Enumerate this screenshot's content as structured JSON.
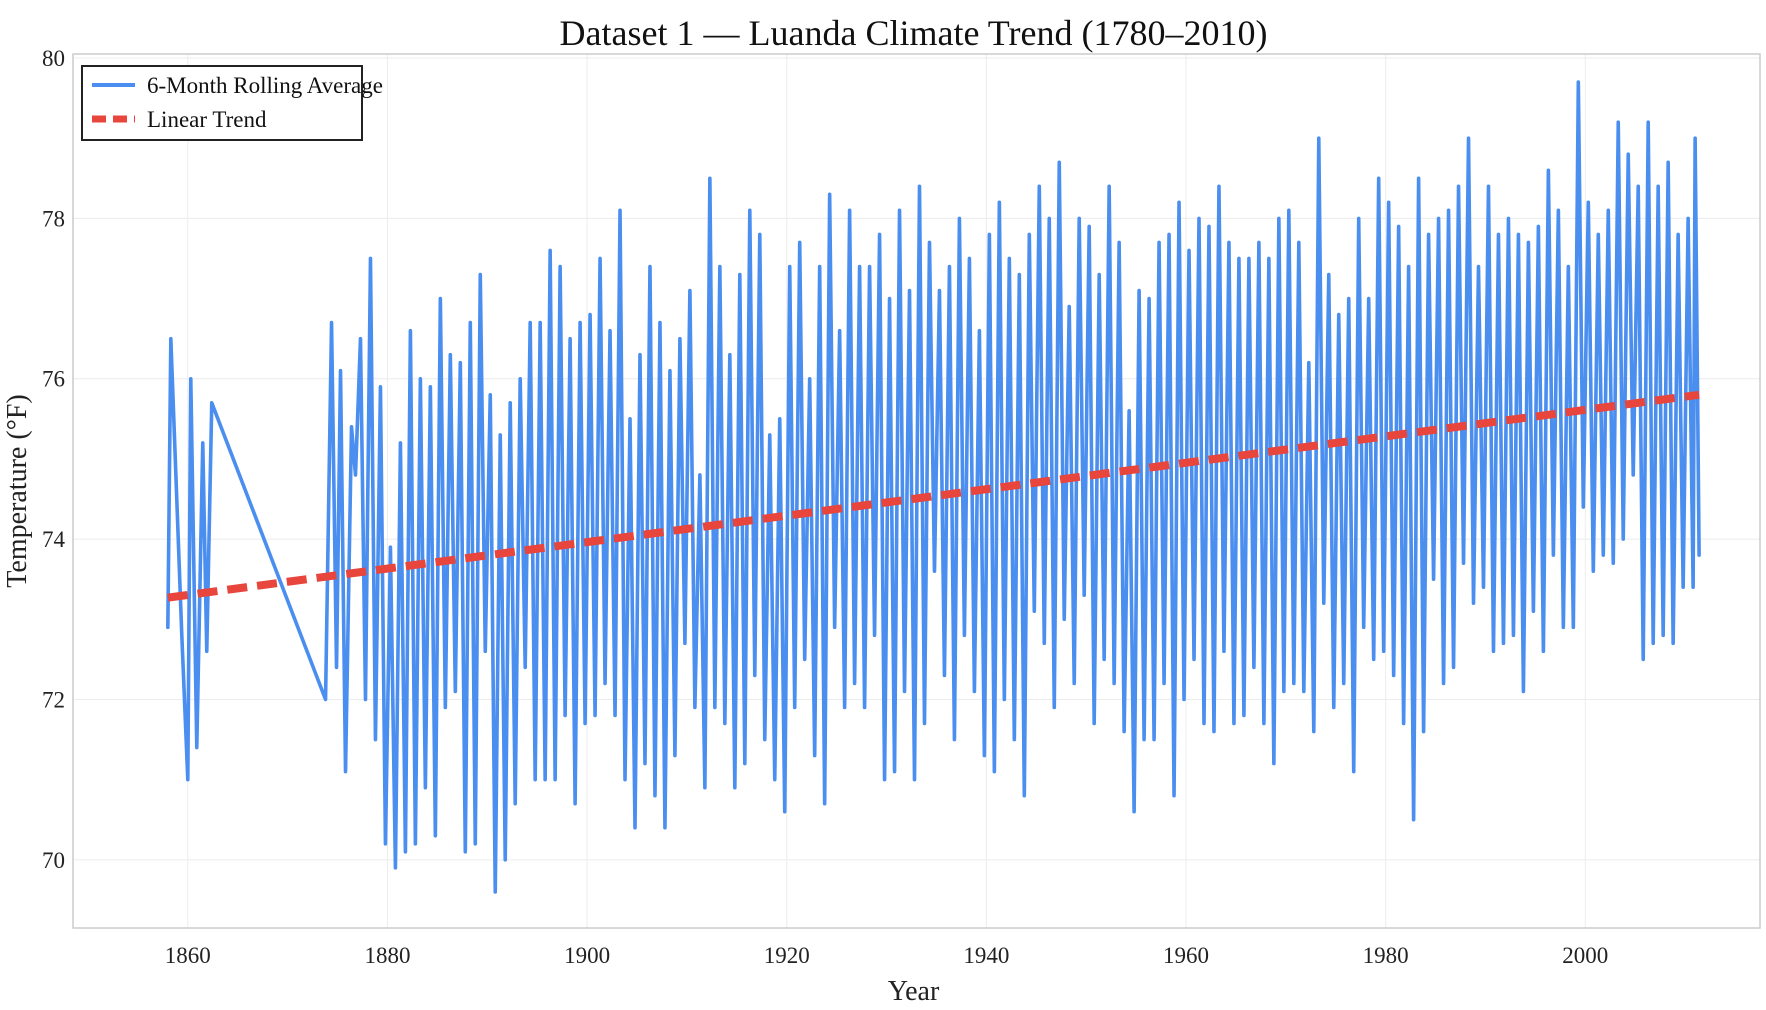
{
  "chart_data": {
    "type": "line",
    "title": "Dataset 1 — Luanda Climate Trend (1780–2010)",
    "xlabel": "Year",
    "ylabel": "Temperature (°F)",
    "xlim": [
      1848.5,
      2017.5
    ],
    "ylim": [
      69.15,
      80.05
    ],
    "xticks": [
      1860,
      1880,
      1900,
      1920,
      1940,
      1960,
      1980,
      2000
    ],
    "yticks": [
      70,
      72,
      74,
      76,
      78,
      80
    ],
    "grid": true,
    "legend_position": "top-left",
    "colors": {
      "rolling": "#4a8ef0",
      "trend": "#e8453c",
      "frame": "#cccccc",
      "grid": "#ececec"
    },
    "series": [
      {
        "name": "6-Month Rolling Average",
        "style": "solid",
        "segments_description": "gap between 1862.4 and 1874; annual oscillation thereafter",
        "start_points": [
          [
            1858.0,
            72.9
          ],
          [
            1858.3,
            76.5
          ],
          [
            1859.4,
            72.8
          ],
          [
            1860.0,
            71.0
          ],
          [
            1860.3,
            76.0
          ],
          [
            1860.9,
            71.4
          ],
          [
            1861.5,
            75.2
          ],
          [
            1861.9,
            72.6
          ],
          [
            1862.4,
            75.7
          ]
        ],
        "gap_end": [
          1873.8,
          72.0
        ],
        "peaks": [
          [
            1874.4,
            76.7
          ],
          [
            1875.3,
            76.1
          ],
          [
            1876.4,
            75.4
          ],
          [
            1877.3,
            76.5
          ],
          [
            1878.3,
            77.5
          ],
          [
            1879.3,
            75.9
          ],
          [
            1880.3,
            73.9
          ],
          [
            1881.3,
            75.2
          ],
          [
            1882.3,
            76.6
          ],
          [
            1883.3,
            76.0
          ],
          [
            1884.3,
            75.9
          ],
          [
            1885.3,
            77.0
          ],
          [
            1886.3,
            76.3
          ],
          [
            1887.3,
            76.2
          ],
          [
            1888.3,
            76.7
          ],
          [
            1889.3,
            77.3
          ],
          [
            1890.3,
            75.8
          ],
          [
            1891.3,
            75.3
          ],
          [
            1892.3,
            75.7
          ],
          [
            1893.3,
            76.0
          ],
          [
            1894.3,
            76.7
          ],
          [
            1895.3,
            76.7
          ],
          [
            1896.3,
            77.6
          ],
          [
            1897.3,
            77.4
          ],
          [
            1898.3,
            76.5
          ],
          [
            1899.3,
            76.7
          ],
          [
            1900.3,
            76.8
          ],
          [
            1901.3,
            77.5
          ],
          [
            1902.3,
            76.6
          ],
          [
            1903.3,
            78.1
          ],
          [
            1904.3,
            75.5
          ],
          [
            1905.3,
            76.3
          ],
          [
            1906.3,
            77.4
          ],
          [
            1907.3,
            76.7
          ],
          [
            1908.3,
            76.1
          ],
          [
            1909.3,
            76.5
          ],
          [
            1910.3,
            77.1
          ],
          [
            1911.3,
            74.8
          ],
          [
            1912.3,
            78.5
          ],
          [
            1913.3,
            77.4
          ],
          [
            1914.3,
            76.3
          ],
          [
            1915.3,
            77.3
          ],
          [
            1916.3,
            78.1
          ],
          [
            1917.3,
            77.8
          ],
          [
            1918.3,
            75.3
          ],
          [
            1919.3,
            75.5
          ],
          [
            1920.3,
            77.4
          ],
          [
            1921.3,
            77.7
          ],
          [
            1922.3,
            76.0
          ],
          [
            1923.3,
            77.4
          ],
          [
            1924.3,
            78.3
          ],
          [
            1925.3,
            76.6
          ],
          [
            1926.3,
            78.1
          ],
          [
            1927.3,
            77.4
          ],
          [
            1928.3,
            77.4
          ],
          [
            1929.3,
            77.8
          ],
          [
            1930.3,
            77.0
          ],
          [
            1931.3,
            78.1
          ],
          [
            1932.3,
            77.1
          ],
          [
            1933.3,
            78.4
          ],
          [
            1934.3,
            77.7
          ],
          [
            1935.3,
            77.1
          ],
          [
            1936.3,
            77.4
          ],
          [
            1937.3,
            78.0
          ],
          [
            1938.3,
            77.5
          ],
          [
            1939.3,
            76.6
          ],
          [
            1940.3,
            77.8
          ],
          [
            1941.3,
            78.2
          ],
          [
            1942.3,
            77.5
          ],
          [
            1943.3,
            77.3
          ],
          [
            1944.3,
            77.8
          ],
          [
            1945.3,
            78.4
          ],
          [
            1946.3,
            78.0
          ],
          [
            1947.3,
            78.7
          ],
          [
            1948.3,
            76.9
          ],
          [
            1949.3,
            78.0
          ],
          [
            1950.3,
            77.9
          ],
          [
            1951.3,
            77.3
          ],
          [
            1952.3,
            78.4
          ],
          [
            1953.3,
            77.7
          ],
          [
            1954.3,
            75.6
          ],
          [
            1955.3,
            77.1
          ],
          [
            1956.3,
            77.0
          ],
          [
            1957.3,
            77.7
          ],
          [
            1958.3,
            77.8
          ],
          [
            1959.3,
            78.2
          ],
          [
            1960.3,
            77.6
          ],
          [
            1961.3,
            78.0
          ],
          [
            1962.3,
            77.9
          ],
          [
            1963.3,
            78.4
          ],
          [
            1964.3,
            77.7
          ],
          [
            1965.3,
            77.5
          ],
          [
            1966.3,
            77.5
          ],
          [
            1967.3,
            77.7
          ],
          [
            1968.3,
            77.5
          ],
          [
            1969.3,
            78.0
          ],
          [
            1970.3,
            78.1
          ],
          [
            1971.3,
            77.7
          ],
          [
            1972.3,
            76.2
          ],
          [
            1973.3,
            79.0
          ],
          [
            1974.3,
            77.3
          ],
          [
            1975.3,
            76.8
          ],
          [
            1976.3,
            77.0
          ],
          [
            1977.3,
            78.0
          ],
          [
            1978.3,
            77.0
          ],
          [
            1979.3,
            78.5
          ],
          [
            1980.3,
            78.2
          ],
          [
            1981.3,
            77.9
          ],
          [
            1982.3,
            77.4
          ],
          [
            1983.3,
            78.5
          ],
          [
            1984.3,
            77.8
          ],
          [
            1985.3,
            78.0
          ],
          [
            1986.3,
            78.1
          ],
          [
            1987.3,
            78.4
          ],
          [
            1988.3,
            79.0
          ],
          [
            1989.3,
            77.4
          ],
          [
            1990.3,
            78.4
          ],
          [
            1991.3,
            77.8
          ],
          [
            1992.3,
            78.0
          ],
          [
            1993.3,
            77.8
          ],
          [
            1994.3,
            77.7
          ],
          [
            1995.3,
            77.9
          ],
          [
            1996.3,
            78.6
          ],
          [
            1997.3,
            78.1
          ],
          [
            1998.3,
            77.4
          ],
          [
            1999.3,
            79.7
          ],
          [
            2000.3,
            78.2
          ],
          [
            2001.3,
            77.8
          ],
          [
            2002.3,
            78.1
          ],
          [
            2003.3,
            79.2
          ],
          [
            2004.3,
            78.8
          ],
          [
            2005.3,
            78.4
          ],
          [
            2006.3,
            79.2
          ],
          [
            2007.3,
            78.4
          ],
          [
            2008.3,
            78.7
          ],
          [
            2009.3,
            77.8
          ],
          [
            2010.3,
            78.0
          ],
          [
            2011.0,
            79.0
          ]
        ],
        "troughs": [
          [
            1874.9,
            72.4
          ],
          [
            1875.8,
            71.1
          ],
          [
            1876.8,
            74.8
          ],
          [
            1877.8,
            72.0
          ],
          [
            1878.8,
            71.5
          ],
          [
            1879.8,
            70.2
          ],
          [
            1880.8,
            69.9
          ],
          [
            1881.8,
            70.1
          ],
          [
            1882.8,
            70.2
          ],
          [
            1883.8,
            70.9
          ],
          [
            1884.8,
            70.3
          ],
          [
            1885.8,
            71.9
          ],
          [
            1886.8,
            72.1
          ],
          [
            1887.8,
            70.1
          ],
          [
            1888.8,
            70.2
          ],
          [
            1889.8,
            72.6
          ],
          [
            1890.8,
            69.6
          ],
          [
            1891.8,
            70.0
          ],
          [
            1892.8,
            70.7
          ],
          [
            1893.8,
            72.4
          ],
          [
            1894.8,
            71.0
          ],
          [
            1895.8,
            71.0
          ],
          [
            1896.8,
            71.0
          ],
          [
            1897.8,
            71.8
          ],
          [
            1898.8,
            70.7
          ],
          [
            1899.8,
            71.7
          ],
          [
            1900.8,
            71.8
          ],
          [
            1901.8,
            72.2
          ],
          [
            1902.8,
            71.8
          ],
          [
            1903.8,
            71.0
          ],
          [
            1904.8,
            70.4
          ],
          [
            1905.8,
            71.2
          ],
          [
            1906.8,
            70.8
          ],
          [
            1907.8,
            70.4
          ],
          [
            1908.8,
            71.3
          ],
          [
            1909.8,
            72.7
          ],
          [
            1910.8,
            71.9
          ],
          [
            1911.8,
            70.9
          ],
          [
            1912.8,
            71.9
          ],
          [
            1913.8,
            71.7
          ],
          [
            1914.8,
            70.9
          ],
          [
            1915.8,
            71.2
          ],
          [
            1916.8,
            72.3
          ],
          [
            1917.8,
            71.5
          ],
          [
            1918.8,
            71.0
          ],
          [
            1919.8,
            70.6
          ],
          [
            1920.8,
            71.9
          ],
          [
            1921.8,
            72.5
          ],
          [
            1922.8,
            71.3
          ],
          [
            1923.8,
            70.7
          ],
          [
            1924.8,
            72.9
          ],
          [
            1925.8,
            71.9
          ],
          [
            1926.8,
            72.2
          ],
          [
            1927.8,
            71.9
          ],
          [
            1928.8,
            72.8
          ],
          [
            1929.8,
            71.0
          ],
          [
            1930.8,
            71.1
          ],
          [
            1931.8,
            72.1
          ],
          [
            1932.8,
            71.0
          ],
          [
            1933.8,
            71.7
          ],
          [
            1934.8,
            73.6
          ],
          [
            1935.8,
            72.3
          ],
          [
            1936.8,
            71.5
          ],
          [
            1937.8,
            72.8
          ],
          [
            1938.8,
            72.1
          ],
          [
            1939.8,
            71.3
          ],
          [
            1940.8,
            71.1
          ],
          [
            1941.8,
            72.0
          ],
          [
            1942.8,
            71.5
          ],
          [
            1943.8,
            70.8
          ],
          [
            1944.8,
            73.1
          ],
          [
            1945.8,
            72.7
          ],
          [
            1946.8,
            71.9
          ],
          [
            1947.8,
            73.0
          ],
          [
            1948.8,
            72.2
          ],
          [
            1949.8,
            73.3
          ],
          [
            1950.8,
            71.7
          ],
          [
            1951.8,
            72.5
          ],
          [
            1952.8,
            72.2
          ],
          [
            1953.8,
            71.6
          ],
          [
            1954.8,
            70.6
          ],
          [
            1955.8,
            71.5
          ],
          [
            1956.8,
            71.5
          ],
          [
            1957.8,
            72.2
          ],
          [
            1958.8,
            70.8
          ],
          [
            1959.8,
            72.0
          ],
          [
            1960.8,
            72.5
          ],
          [
            1961.8,
            71.7
          ],
          [
            1962.8,
            71.6
          ],
          [
            1963.8,
            72.6
          ],
          [
            1964.8,
            71.7
          ],
          [
            1965.8,
            71.8
          ],
          [
            1966.8,
            72.4
          ],
          [
            1967.8,
            71.7
          ],
          [
            1968.8,
            71.2
          ],
          [
            1969.8,
            72.1
          ],
          [
            1970.8,
            72.2
          ],
          [
            1971.8,
            72.1
          ],
          [
            1972.8,
            71.6
          ],
          [
            1973.8,
            73.2
          ],
          [
            1974.8,
            71.9
          ],
          [
            1975.8,
            72.2
          ],
          [
            1976.8,
            71.1
          ],
          [
            1977.8,
            72.9
          ],
          [
            1978.8,
            72.5
          ],
          [
            1979.8,
            72.6
          ],
          [
            1980.8,
            72.3
          ],
          [
            1981.8,
            71.7
          ],
          [
            1982.8,
            70.5
          ],
          [
            1983.8,
            71.6
          ],
          [
            1984.8,
            73.5
          ],
          [
            1985.8,
            72.2
          ],
          [
            1986.8,
            72.4
          ],
          [
            1987.8,
            73.7
          ],
          [
            1988.8,
            73.2
          ],
          [
            1989.8,
            73.4
          ],
          [
            1990.8,
            72.6
          ],
          [
            1991.8,
            72.7
          ],
          [
            1992.8,
            72.8
          ],
          [
            1993.8,
            72.1
          ],
          [
            1994.8,
            73.1
          ],
          [
            1995.8,
            72.6
          ],
          [
            1996.8,
            73.8
          ],
          [
            1997.8,
            72.9
          ],
          [
            1998.8,
            72.9
          ],
          [
            1999.8,
            74.4
          ],
          [
            2000.8,
            73.6
          ],
          [
            2001.8,
            73.8
          ],
          [
            2002.8,
            73.7
          ],
          [
            2003.8,
            74.0
          ],
          [
            2004.8,
            74.8
          ],
          [
            2005.8,
            72.5
          ],
          [
            2006.8,
            72.7
          ],
          [
            2007.8,
            72.8
          ],
          [
            2008.8,
            72.7
          ],
          [
            2009.8,
            73.4
          ],
          [
            2010.8,
            73.4
          ]
        ],
        "end_point": [
          2011.4,
          73.8
        ]
      },
      {
        "name": "Linear Trend",
        "style": "dashed",
        "x": [
          1858.0,
          2011.4
        ],
        "y": [
          73.27,
          75.8
        ]
      }
    ]
  }
}
